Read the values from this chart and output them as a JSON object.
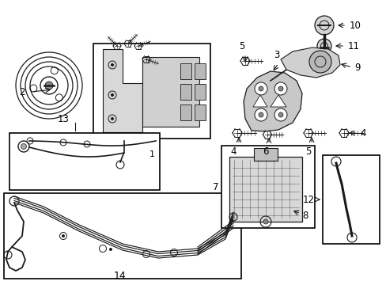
{
  "bg_color": "#ffffff",
  "lc": "#1a1a1a",
  "bc": "#000000",
  "fig_w": 4.89,
  "fig_h": 3.6,
  "dpi": 100,
  "xlim": [
    0,
    489
  ],
  "ylim": [
    0,
    360
  ]
}
